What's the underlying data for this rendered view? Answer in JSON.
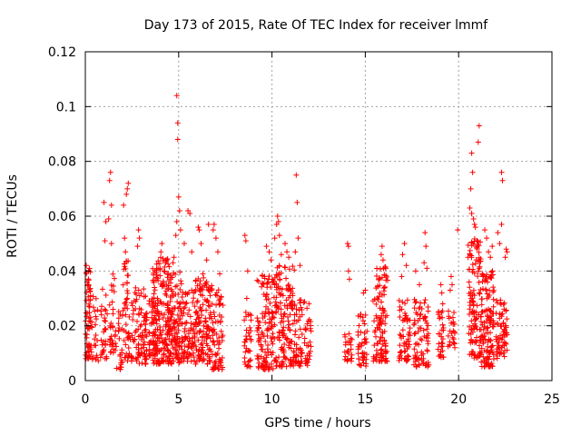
{
  "chart_data": {
    "type": "scatter",
    "title": "Day 173 of 2015, Rate Of TEC Index for receiver lmmf",
    "xlabel": "GPS time / hours",
    "ylabel": "ROTI / TECUs",
    "xlim": [
      0,
      25
    ],
    "ylim": [
      0,
      0.12
    ],
    "xticks": [
      0,
      5,
      10,
      15,
      20,
      25
    ],
    "xtick_labels": [
      "0",
      "5",
      "10",
      "15",
      "20",
      "25"
    ],
    "yticks": [
      0,
      0.02,
      0.04,
      0.06,
      0.08,
      0.1,
      0.12
    ],
    "ytick_labels": [
      "0",
      "0.02",
      "0.04",
      "0.06",
      "0.08",
      "0.1",
      "0.12"
    ],
    "grid": true,
    "marker": "+",
    "color": "#ff0000",
    "series": [
      {
        "name": "ROTI",
        "clusters": [
          {
            "x": [
              0.0,
              0.3
            ],
            "y_range": [
              0.008,
              0.042
            ],
            "n": 60
          },
          {
            "x": [
              0.3,
              0.7
            ],
            "y_range": [
              0.007,
              0.031
            ],
            "n": 25
          },
          {
            "x": [
              0.8,
              1.2
            ],
            "y_range": [
              0.008,
              0.034
            ],
            "n": 30
          },
          {
            "x": [
              1.3,
              1.6
            ],
            "y_range": [
              0.01,
              0.04
            ],
            "n": 30
          },
          {
            "x": [
              1.6,
              2.0
            ],
            "y_range": [
              0.004,
              0.026
            ],
            "n": 30
          },
          {
            "x": [
              2.0,
              2.5
            ],
            "y_range": [
              0.007,
              0.045
            ],
            "n": 50
          },
          {
            "x": [
              2.5,
              3.3
            ],
            "y_range": [
              0.006,
              0.034
            ],
            "n": 90
          },
          {
            "x": [
              3.4,
              3.8
            ],
            "y_range": [
              0.009,
              0.03
            ],
            "n": 40
          },
          {
            "x": [
              3.6,
              4.5
            ],
            "y_range": [
              0.006,
              0.045
            ],
            "n": 160
          },
          {
            "x": [
              4.4,
              5.2
            ],
            "y_range": [
              0.006,
              0.04
            ],
            "n": 140
          },
          {
            "x": [
              5.2,
              5.9
            ],
            "y_range": [
              0.007,
              0.033
            ],
            "n": 80
          },
          {
            "x": [
              5.9,
              6.8
            ],
            "y_range": [
              0.006,
              0.038
            ],
            "n": 130
          },
          {
            "x": [
              6.8,
              7.4
            ],
            "y_range": [
              0.004,
              0.034
            ],
            "n": 70
          },
          {
            "x": [
              8.5,
              8.9
            ],
            "y_range": [
              0.005,
              0.025
            ],
            "n": 35
          },
          {
            "x": [
              9.2,
              10.2
            ],
            "y_range": [
              0.004,
              0.04
            ],
            "n": 130
          },
          {
            "x": [
              10.2,
              11.2
            ],
            "y_range": [
              0.005,
              0.042
            ],
            "n": 140
          },
          {
            "x": [
              11.2,
              12.1
            ],
            "y_range": [
              0.005,
              0.03
            ],
            "n": 80
          },
          {
            "x": [
              13.9,
              14.3
            ],
            "y_range": [
              0.007,
              0.018
            ],
            "n": 25
          },
          {
            "x": [
              14.6,
              15.1
            ],
            "y_range": [
              0.005,
              0.025
            ],
            "n": 45
          },
          {
            "x": [
              15.4,
              16.2
            ],
            "y_range": [
              0.007,
              0.042
            ],
            "n": 110
          },
          {
            "x": [
              16.8,
              17.4
            ],
            "y_range": [
              0.007,
              0.03
            ],
            "n": 60
          },
          {
            "x": [
              17.6,
              18.4
            ],
            "y_range": [
              0.005,
              0.03
            ],
            "n": 80
          },
          {
            "x": [
              18.9,
              19.2
            ],
            "y_range": [
              0.008,
              0.026
            ],
            "n": 30
          },
          {
            "x": [
              19.4,
              19.8
            ],
            "y_range": [
              0.012,
              0.026
            ],
            "n": 25
          },
          {
            "x": [
              20.5,
              21.2
            ],
            "y_range": [
              0.008,
              0.052
            ],
            "n": 120
          },
          {
            "x": [
              21.2,
              21.9
            ],
            "y_range": [
              0.005,
              0.04
            ],
            "n": 130
          },
          {
            "x": [
              22.0,
              22.6
            ],
            "y_range": [
              0.008,
              0.03
            ],
            "n": 70
          }
        ],
        "points": [
          {
            "x": 0.05,
            "y": 0.042
          },
          {
            "x": 0.1,
            "y": 0.036
          },
          {
            "x": 0.15,
            "y": 0.02
          },
          {
            "x": 1.0,
            "y": 0.065
          },
          {
            "x": 1.1,
            "y": 0.058
          },
          {
            "x": 1.05,
            "y": 0.051
          },
          {
            "x": 1.3,
            "y": 0.073
          },
          {
            "x": 1.35,
            "y": 0.076
          },
          {
            "x": 1.4,
            "y": 0.064
          },
          {
            "x": 1.25,
            "y": 0.059
          },
          {
            "x": 1.4,
            "y": 0.05
          },
          {
            "x": 2.05,
            "y": 0.064
          },
          {
            "x": 2.1,
            "y": 0.052
          },
          {
            "x": 2.15,
            "y": 0.047
          },
          {
            "x": 2.2,
            "y": 0.068
          },
          {
            "x": 2.25,
            "y": 0.07
          },
          {
            "x": 2.3,
            "y": 0.072
          },
          {
            "x": 2.8,
            "y": 0.049
          },
          {
            "x": 2.85,
            "y": 0.055
          },
          {
            "x": 2.9,
            "y": 0.052
          },
          {
            "x": 3.9,
            "y": 0.041
          },
          {
            "x": 4.05,
            "y": 0.047
          },
          {
            "x": 4.1,
            "y": 0.05
          },
          {
            "x": 4.3,
            "y": 0.044
          },
          {
            "x": 4.7,
            "y": 0.043
          },
          {
            "x": 4.75,
            "y": 0.045
          },
          {
            "x": 4.9,
            "y": 0.104
          },
          {
            "x": 4.95,
            "y": 0.094
          },
          {
            "x": 4.95,
            "y": 0.088
          },
          {
            "x": 5.0,
            "y": 0.067
          },
          {
            "x": 5.05,
            "y": 0.062
          },
          {
            "x": 4.9,
            "y": 0.058
          },
          {
            "x": 5.1,
            "y": 0.055
          },
          {
            "x": 4.85,
            "y": 0.053
          },
          {
            "x": 5.3,
            "y": 0.05
          },
          {
            "x": 5.5,
            "y": 0.062
          },
          {
            "x": 5.6,
            "y": 0.061
          },
          {
            "x": 5.7,
            "y": 0.047
          },
          {
            "x": 6.05,
            "y": 0.056
          },
          {
            "x": 6.1,
            "y": 0.055
          },
          {
            "x": 6.2,
            "y": 0.05
          },
          {
            "x": 6.6,
            "y": 0.057
          },
          {
            "x": 6.85,
            "y": 0.055
          },
          {
            "x": 6.9,
            "y": 0.057
          },
          {
            "x": 7.0,
            "y": 0.052
          },
          {
            "x": 7.1,
            "y": 0.047
          },
          {
            "x": 6.5,
            "y": 0.044
          },
          {
            "x": 7.2,
            "y": 0.039
          },
          {
            "x": 6.3,
            "y": 0.039
          },
          {
            "x": 8.55,
            "y": 0.053
          },
          {
            "x": 8.6,
            "y": 0.051
          },
          {
            "x": 8.7,
            "y": 0.04
          },
          {
            "x": 8.65,
            "y": 0.03
          },
          {
            "x": 9.7,
            "y": 0.049
          },
          {
            "x": 9.85,
            "y": 0.047
          },
          {
            "x": 9.95,
            "y": 0.044
          },
          {
            "x": 10.3,
            "y": 0.06
          },
          {
            "x": 10.35,
            "y": 0.058
          },
          {
            "x": 10.25,
            "y": 0.057
          },
          {
            "x": 10.4,
            "y": 0.053
          },
          {
            "x": 10.15,
            "y": 0.052
          },
          {
            "x": 10.5,
            "y": 0.046
          },
          {
            "x": 10.7,
            "y": 0.05
          },
          {
            "x": 10.8,
            "y": 0.047
          },
          {
            "x": 10.9,
            "y": 0.045
          },
          {
            "x": 11.3,
            "y": 0.075
          },
          {
            "x": 11.35,
            "y": 0.065
          },
          {
            "x": 11.4,
            "y": 0.052
          },
          {
            "x": 11.25,
            "y": 0.047
          },
          {
            "x": 11.5,
            "y": 0.042
          },
          {
            "x": 14.05,
            "y": 0.05
          },
          {
            "x": 14.1,
            "y": 0.049
          },
          {
            "x": 14.1,
            "y": 0.04
          },
          {
            "x": 14.15,
            "y": 0.037
          },
          {
            "x": 15.0,
            "y": 0.033
          },
          {
            "x": 14.9,
            "y": 0.032
          },
          {
            "x": 15.9,
            "y": 0.049
          },
          {
            "x": 15.85,
            "y": 0.046
          },
          {
            "x": 15.95,
            "y": 0.044
          },
          {
            "x": 16.1,
            "y": 0.041
          },
          {
            "x": 17.1,
            "y": 0.05
          },
          {
            "x": 17.0,
            "y": 0.046
          },
          {
            "x": 17.2,
            "y": 0.042
          },
          {
            "x": 16.95,
            "y": 0.038
          },
          {
            "x": 17.7,
            "y": 0.04
          },
          {
            "x": 17.9,
            "y": 0.035
          },
          {
            "x": 18.2,
            "y": 0.054
          },
          {
            "x": 18.25,
            "y": 0.049
          },
          {
            "x": 18.15,
            "y": 0.043
          },
          {
            "x": 18.3,
            "y": 0.041
          },
          {
            "x": 19.05,
            "y": 0.035
          },
          {
            "x": 19.1,
            "y": 0.032
          },
          {
            "x": 19.15,
            "y": 0.028
          },
          {
            "x": 19.6,
            "y": 0.038
          },
          {
            "x": 19.65,
            "y": 0.035
          },
          {
            "x": 19.55,
            "y": 0.033
          },
          {
            "x": 19.95,
            "y": 0.055
          },
          {
            "x": 20.7,
            "y": 0.083
          },
          {
            "x": 20.75,
            "y": 0.076
          },
          {
            "x": 20.65,
            "y": 0.07
          },
          {
            "x": 20.6,
            "y": 0.063
          },
          {
            "x": 20.7,
            "y": 0.061
          },
          {
            "x": 20.8,
            "y": 0.059
          },
          {
            "x": 20.85,
            "y": 0.057
          },
          {
            "x": 20.9,
            "y": 0.056
          },
          {
            "x": 21.1,
            "y": 0.093
          },
          {
            "x": 21.05,
            "y": 0.087
          },
          {
            "x": 21.4,
            "y": 0.055
          },
          {
            "x": 21.5,
            "y": 0.052
          },
          {
            "x": 21.6,
            "y": 0.047
          },
          {
            "x": 21.7,
            "y": 0.045
          },
          {
            "x": 21.8,
            "y": 0.049
          },
          {
            "x": 22.1,
            "y": 0.054
          },
          {
            "x": 22.2,
            "y": 0.05
          },
          {
            "x": 22.3,
            "y": 0.076
          },
          {
            "x": 22.35,
            "y": 0.073
          },
          {
            "x": 22.3,
            "y": 0.057
          },
          {
            "x": 22.55,
            "y": 0.048
          },
          {
            "x": 22.6,
            "y": 0.047
          },
          {
            "x": 22.5,
            "y": 0.045
          }
        ]
      }
    ]
  }
}
